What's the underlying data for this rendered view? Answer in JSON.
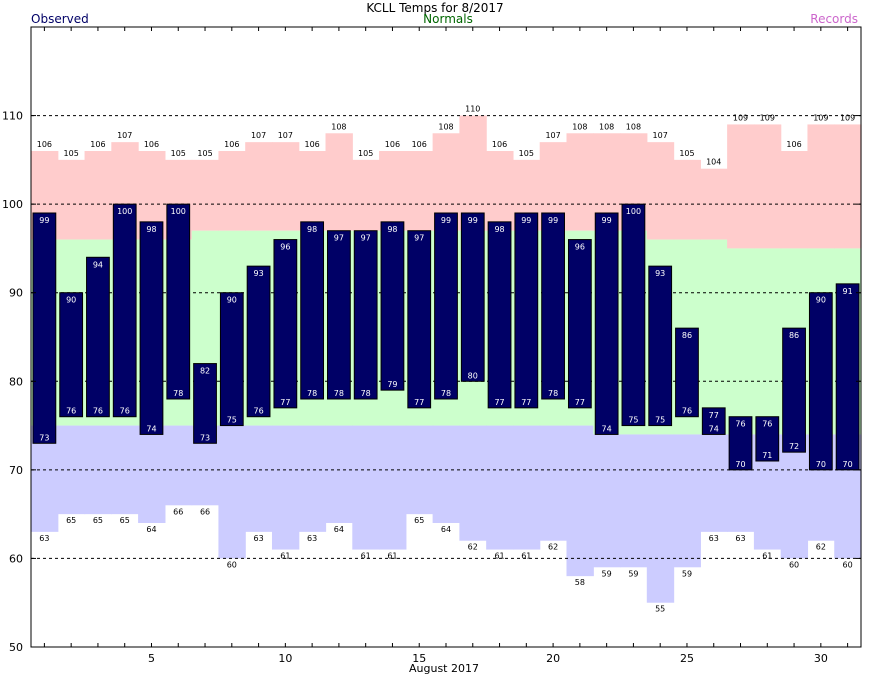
{
  "chart_data": {
    "type": "bar",
    "title": "KCLL Temps for 8/2017",
    "xlabel": "August 2017",
    "ylabel": "",
    "legend": {
      "observed": {
        "label": "Observed",
        "color": "#000066"
      },
      "normals": {
        "label": "Normals",
        "color": "#006600"
      },
      "records": {
        "label": "Records",
        "color": "#cc66cc"
      }
    },
    "xlim": [
      1,
      31
    ],
    "ylim": [
      50,
      120
    ],
    "x_ticks": [
      5,
      10,
      15,
      20,
      25,
      30
    ],
    "y_ticks": [
      50,
      60,
      70,
      80,
      90,
      100,
      110
    ],
    "grid_lines_y": [
      60,
      70,
      80,
      90,
      100,
      110
    ],
    "days": [
      1,
      2,
      3,
      4,
      5,
      6,
      7,
      8,
      9,
      10,
      11,
      12,
      13,
      14,
      15,
      16,
      17,
      18,
      19,
      20,
      21,
      22,
      23,
      24,
      25,
      26,
      27,
      28,
      29,
      30,
      31
    ],
    "series": [
      {
        "name": "Observed High",
        "color": "#000066",
        "values": [
          99,
          90,
          94,
          100,
          98,
          100,
          82,
          90,
          93,
          96,
          98,
          97,
          97,
          98,
          97,
          99,
          99,
          98,
          99,
          99,
          96,
          99,
          100,
          93,
          86,
          77,
          76,
          76,
          86,
          90,
          91
        ]
      },
      {
        "name": "Observed Low",
        "color": "#000066",
        "values": [
          73,
          76,
          76,
          76,
          74,
          78,
          73,
          75,
          76,
          77,
          78,
          78,
          78,
          79,
          77,
          78,
          80,
          77,
          77,
          78,
          77,
          74,
          75,
          75,
          76,
          74,
          70,
          71,
          72,
          70,
          70
        ]
      },
      {
        "name": "Record High",
        "color": "#ffcccc",
        "values": [
          106,
          105,
          106,
          107,
          106,
          105,
          105,
          106,
          107,
          107,
          106,
          108,
          105,
          106,
          106,
          108,
          110,
          106,
          105,
          107,
          108,
          108,
          108,
          107,
          105,
          104,
          109,
          109,
          106,
          109,
          109
        ]
      },
      {
        "name": "Record Low",
        "color": "#ccccff",
        "values": [
          63,
          65,
          65,
          65,
          64,
          66,
          66,
          60,
          63,
          61,
          63,
          64,
          61,
          61,
          65,
          64,
          62,
          61,
          61,
          62,
          58,
          59,
          59,
          55,
          59,
          63,
          63,
          61,
          60,
          62,
          60
        ]
      },
      {
        "name": "Normal High",
        "color": "#ccffcc",
        "values": [
          96,
          96,
          96,
          96,
          96,
          96,
          97,
          97,
          97,
          97,
          97,
          97,
          97,
          97,
          97,
          97,
          97,
          97,
          97,
          97,
          97,
          97,
          97,
          96,
          96,
          96,
          95,
          95,
          95,
          95,
          95
        ]
      },
      {
        "name": "Normal Low",
        "color": "#ccccff",
        "values": [
          75,
          75,
          75,
          75,
          75,
          75,
          75,
          75,
          75,
          75,
          75,
          75,
          75,
          75,
          75,
          75,
          75,
          75,
          75,
          75,
          75,
          74,
          74,
          74,
          74,
          74,
          74,
          74,
          74,
          74,
          74
        ]
      }
    ]
  }
}
